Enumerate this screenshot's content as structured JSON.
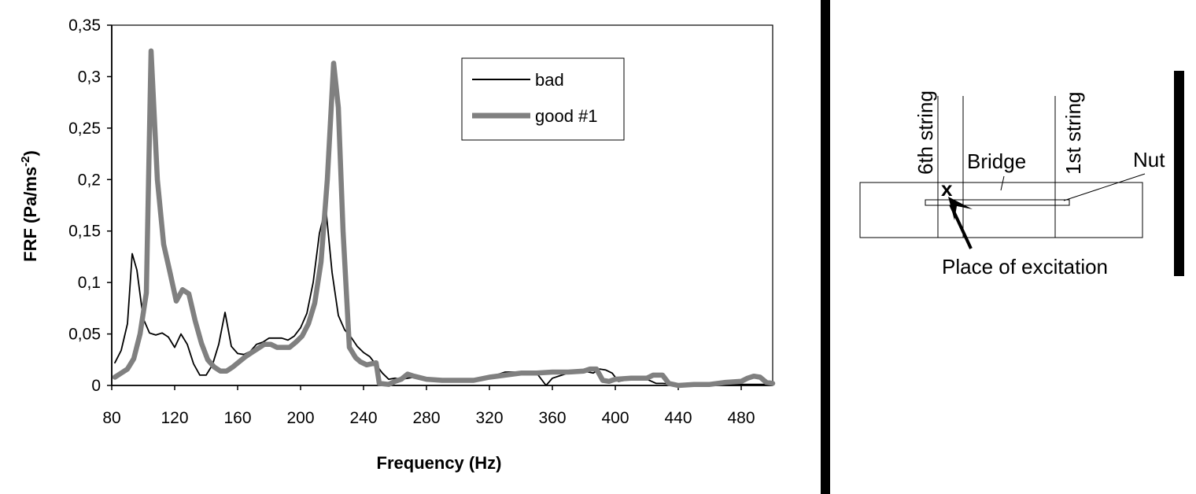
{
  "chart_data": {
    "type": "line",
    "title": "",
    "xlabel": "Frequency (Hz)",
    "ylabel_main": "FRF (Pa/ms",
    "ylabel_sup": "-2",
    "ylabel_end": ")",
    "xlim": [
      80,
      500
    ],
    "ylim": [
      0,
      0.35
    ],
    "x_ticks": [
      80,
      120,
      160,
      200,
      240,
      280,
      320,
      360,
      400,
      440,
      480
    ],
    "x_tick_labels": [
      "80",
      "120",
      "160",
      "200",
      "240",
      "280",
      "320",
      "360",
      "400",
      "440",
      "480"
    ],
    "y_ticks": [
      0,
      0.05,
      0.1,
      0.15,
      0.2,
      0.25,
      0.3,
      0.35
    ],
    "y_tick_labels": [
      "0",
      "0,05",
      "0,1",
      "0,15",
      "0,2",
      "0,25",
      "0,3",
      "0,35"
    ],
    "grid": false,
    "legend_position": "top-right",
    "series": [
      {
        "name": "bad",
        "color": "#000000",
        "x": [
          82,
          86,
          90,
          93,
          96,
          100,
          104,
          108,
          112,
          116,
          120,
          124,
          128,
          132,
          136,
          140,
          144,
          148,
          152,
          156,
          160,
          164,
          168,
          172,
          176,
          180,
          184,
          188,
          192,
          196,
          200,
          204,
          208,
          212,
          216,
          220,
          224,
          228,
          232,
          236,
          240,
          244,
          248,
          252,
          256,
          260,
          264,
          268,
          272,
          280,
          290,
          300,
          310,
          320,
          330,
          340,
          350,
          352,
          356,
          360,
          366,
          370,
          376,
          380,
          386,
          390,
          394,
          398,
          402,
          410,
          420,
          426,
          430,
          440,
          450,
          460,
          470,
          480,
          490,
          500
        ],
        "y": [
          0.022,
          0.034,
          0.06,
          0.128,
          0.112,
          0.065,
          0.051,
          0.049,
          0.051,
          0.047,
          0.037,
          0.05,
          0.04,
          0.021,
          0.01,
          0.01,
          0.02,
          0.04,
          0.071,
          0.038,
          0.031,
          0.03,
          0.033,
          0.04,
          0.042,
          0.046,
          0.046,
          0.046,
          0.044,
          0.048,
          0.056,
          0.07,
          0.1,
          0.148,
          0.173,
          0.11,
          0.068,
          0.054,
          0.047,
          0.038,
          0.032,
          0.028,
          0.02,
          0.012,
          0.006,
          0.007,
          0.006,
          0.007,
          0.008,
          0.006,
          0.005,
          0.005,
          0.006,
          0.008,
          0.013,
          0.013,
          0.012,
          0.008,
          0.0,
          0.007,
          0.01,
          0.012,
          0.015,
          0.014,
          0.012,
          0.016,
          0.015,
          0.012,
          0.004,
          0.006,
          0.006,
          0.002,
          0.002,
          0.001,
          0.001,
          0.001,
          0.001,
          0.001,
          0.001,
          0.001
        ]
      },
      {
        "name": "good #1",
        "color": "#808080",
        "x": [
          82,
          86,
          90,
          94,
          98,
          102,
          105,
          109,
          113,
          117,
          121,
          125,
          129,
          133,
          137,
          141,
          145,
          149,
          153,
          157,
          161,
          165,
          169,
          173,
          177,
          181,
          185,
          189,
          193,
          197,
          201,
          205,
          209,
          213,
          217,
          221,
          224,
          227,
          231,
          235,
          238,
          242,
          248,
          250,
          256,
          260,
          264,
          268,
          272,
          280,
          290,
          300,
          310,
          320,
          330,
          340,
          350,
          360,
          370,
          380,
          384,
          388,
          392,
          396,
          400,
          410,
          420,
          424,
          430,
          434,
          440,
          450,
          460,
          470,
          480,
          484,
          488,
          492,
          496,
          500
        ],
        "y": [
          0.008,
          0.012,
          0.016,
          0.026,
          0.05,
          0.09,
          0.325,
          0.2,
          0.137,
          0.11,
          0.082,
          0.093,
          0.089,
          0.063,
          0.041,
          0.025,
          0.018,
          0.014,
          0.014,
          0.018,
          0.023,
          0.028,
          0.032,
          0.036,
          0.04,
          0.04,
          0.037,
          0.037,
          0.037,
          0.042,
          0.048,
          0.06,
          0.08,
          0.12,
          0.2,
          0.313,
          0.27,
          0.15,
          0.037,
          0.027,
          0.023,
          0.02,
          0.022,
          0.002,
          0.001,
          0.004,
          0.006,
          0.011,
          0.009,
          0.006,
          0.005,
          0.005,
          0.005,
          0.008,
          0.01,
          0.012,
          0.012,
          0.013,
          0.013,
          0.014,
          0.016,
          0.016,
          0.005,
          0.004,
          0.006,
          0.007,
          0.007,
          0.01,
          0.01,
          0.002,
          0.0,
          0.001,
          0.001,
          0.003,
          0.004,
          0.007,
          0.009,
          0.008,
          0.003,
          0.002
        ]
      }
    ]
  },
  "diagram": {
    "label_6th_string": "6th string",
    "label_1st_string": "1st string",
    "label_bridge": "Bridge",
    "label_nut": "Nut",
    "label_excitation": "Place of excitation",
    "marker": "x"
  }
}
